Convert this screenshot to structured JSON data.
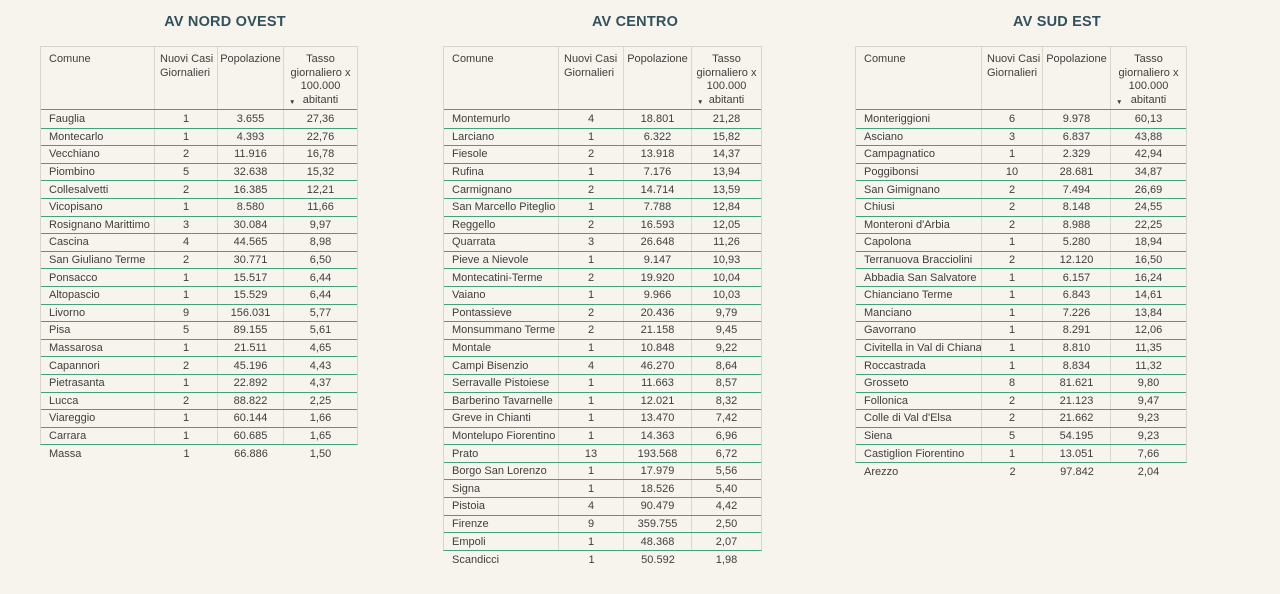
{
  "page": {
    "background_color": "#f7f4ee",
    "grid_line_color": "#44a17e",
    "outer_border_color": "#d8d4ca",
    "title_color": "#33515c",
    "text_color": "#3f3e3b"
  },
  "icons": {
    "sort_descending": "▼"
  },
  "chart_data": [
    {
      "type": "table",
      "title": "AV NORD OVEST",
      "columns": [
        "Comune",
        "Nuovi Casi Giornalieri",
        "Popolazione",
        "Tasso giornaliero x 100.000 abitanti"
      ],
      "sorted_by": "Tasso giornaliero x 100.000 abitanti",
      "sort_direction": "desc",
      "rows": [
        [
          "Fauglia",
          "1",
          "3.655",
          "27,36"
        ],
        [
          "Montecarlo",
          "1",
          "4.393",
          "22,76"
        ],
        [
          "Vecchiano",
          "2",
          "11.916",
          "16,78"
        ],
        [
          "Piombino",
          "5",
          "32.638",
          "15,32"
        ],
        [
          "Collesalvetti",
          "2",
          "16.385",
          "12,21"
        ],
        [
          "Vicopisano",
          "1",
          "8.580",
          "11,66"
        ],
        [
          "Rosignano Marittimo",
          "3",
          "30.084",
          "9,97"
        ],
        [
          "Cascina",
          "4",
          "44.565",
          "8,98"
        ],
        [
          "San Giuliano Terme",
          "2",
          "30.771",
          "6,50"
        ],
        [
          "Ponsacco",
          "1",
          "15.517",
          "6,44"
        ],
        [
          "Altopascio",
          "1",
          "15.529",
          "6,44"
        ],
        [
          "Livorno",
          "9",
          "156.031",
          "5,77"
        ],
        [
          "Pisa",
          "5",
          "89.155",
          "5,61"
        ],
        [
          "Massarosa",
          "1",
          "21.511",
          "4,65"
        ],
        [
          "Capannori",
          "2",
          "45.196",
          "4,43"
        ],
        [
          "Pietrasanta",
          "1",
          "22.892",
          "4,37"
        ],
        [
          "Lucca",
          "2",
          "88.822",
          "2,25"
        ],
        [
          "Viareggio",
          "1",
          "60.144",
          "1,66"
        ],
        [
          "Carrara",
          "1",
          "60.685",
          "1,65"
        ],
        [
          "Massa",
          "1",
          "66.886",
          "1,50"
        ]
      ]
    },
    {
      "type": "table",
      "title": "AV CENTRO",
      "columns": [
        "Comune",
        "Nuovi Casi Giornalieri",
        "Popolazione",
        "Tasso giornaliero x 100.000 abitanti"
      ],
      "sorted_by": "Tasso giornaliero x 100.000 abitanti",
      "sort_direction": "desc",
      "rows": [
        [
          "Montemurlo",
          "4",
          "18.801",
          "21,28"
        ],
        [
          "Larciano",
          "1",
          "6.322",
          "15,82"
        ],
        [
          "Fiesole",
          "2",
          "13.918",
          "14,37"
        ],
        [
          "Rufina",
          "1",
          "7.176",
          "13,94"
        ],
        [
          "Carmignano",
          "2",
          "14.714",
          "13,59"
        ],
        [
          "San Marcello Piteglio",
          "1",
          "7.788",
          "12,84"
        ],
        [
          "Reggello",
          "2",
          "16.593",
          "12,05"
        ],
        [
          "Quarrata",
          "3",
          "26.648",
          "11,26"
        ],
        [
          "Pieve a Nievole",
          "1",
          "9.147",
          "10,93"
        ],
        [
          "Montecatini-Terme",
          "2",
          "19.920",
          "10,04"
        ],
        [
          "Vaiano",
          "1",
          "9.966",
          "10,03"
        ],
        [
          "Pontassieve",
          "2",
          "20.436",
          "9,79"
        ],
        [
          "Monsummano Terme",
          "2",
          "21.158",
          "9,45"
        ],
        [
          "Montale",
          "1",
          "10.848",
          "9,22"
        ],
        [
          "Campi Bisenzio",
          "4",
          "46.270",
          "8,64"
        ],
        [
          "Serravalle Pistoiese",
          "1",
          "11.663",
          "8,57"
        ],
        [
          "Barberino Tavarnelle",
          "1",
          "12.021",
          "8,32"
        ],
        [
          "Greve in Chianti",
          "1",
          "13.470",
          "7,42"
        ],
        [
          "Montelupo Fiorentino",
          "1",
          "14.363",
          "6,96"
        ],
        [
          "Prato",
          "13",
          "193.568",
          "6,72"
        ],
        [
          "Borgo San Lorenzo",
          "1",
          "17.979",
          "5,56"
        ],
        [
          "Signa",
          "1",
          "18.526",
          "5,40"
        ],
        [
          "Pistoia",
          "4",
          "90.479",
          "4,42"
        ],
        [
          "Firenze",
          "9",
          "359.755",
          "2,50"
        ],
        [
          "Empoli",
          "1",
          "48.368",
          "2,07"
        ],
        [
          "Scandicci",
          "1",
          "50.592",
          "1,98"
        ]
      ]
    },
    {
      "type": "table",
      "title": "AV SUD EST",
      "columns": [
        "Comune",
        "Nuovi Casi Giornalieri",
        "Popolazione",
        "Tasso giornaliero x 100.000 abitanti"
      ],
      "sorted_by": "Tasso giornaliero x 100.000 abitanti",
      "sort_direction": "desc",
      "rows": [
        [
          "Monteriggioni",
          "6",
          "9.978",
          "60,13"
        ],
        [
          "Asciano",
          "3",
          "6.837",
          "43,88"
        ],
        [
          "Campagnatico",
          "1",
          "2.329",
          "42,94"
        ],
        [
          "Poggibonsi",
          "10",
          "28.681",
          "34,87"
        ],
        [
          "San Gimignano",
          "2",
          "7.494",
          "26,69"
        ],
        [
          "Chiusi",
          "2",
          "8.148",
          "24,55"
        ],
        [
          "Monteroni d'Arbia",
          "2",
          "8.988",
          "22,25"
        ],
        [
          "Capolona",
          "1",
          "5.280",
          "18,94"
        ],
        [
          "Terranuova Bracciolini",
          "2",
          "12.120",
          "16,50"
        ],
        [
          "Abbadia San Salvatore",
          "1",
          "6.157",
          "16,24"
        ],
        [
          "Chianciano Terme",
          "1",
          "6.843",
          "14,61"
        ],
        [
          "Manciano",
          "1",
          "7.226",
          "13,84"
        ],
        [
          "Gavorrano",
          "1",
          "8.291",
          "12,06"
        ],
        [
          "Civitella in Val di Chiana",
          "1",
          "8.810",
          "11,35"
        ],
        [
          "Roccastrada",
          "1",
          "8.834",
          "11,32"
        ],
        [
          "Grosseto",
          "8",
          "81.621",
          "9,80"
        ],
        [
          "Follonica",
          "2",
          "21.123",
          "9,47"
        ],
        [
          "Colle di Val d'Elsa",
          "2",
          "21.662",
          "9,23"
        ],
        [
          "Siena",
          "5",
          "54.195",
          "9,23"
        ],
        [
          "Castiglion Fiorentino",
          "1",
          "13.051",
          "7,66"
        ],
        [
          "Arezzo",
          "2",
          "97.842",
          "2,04"
        ]
      ]
    }
  ]
}
